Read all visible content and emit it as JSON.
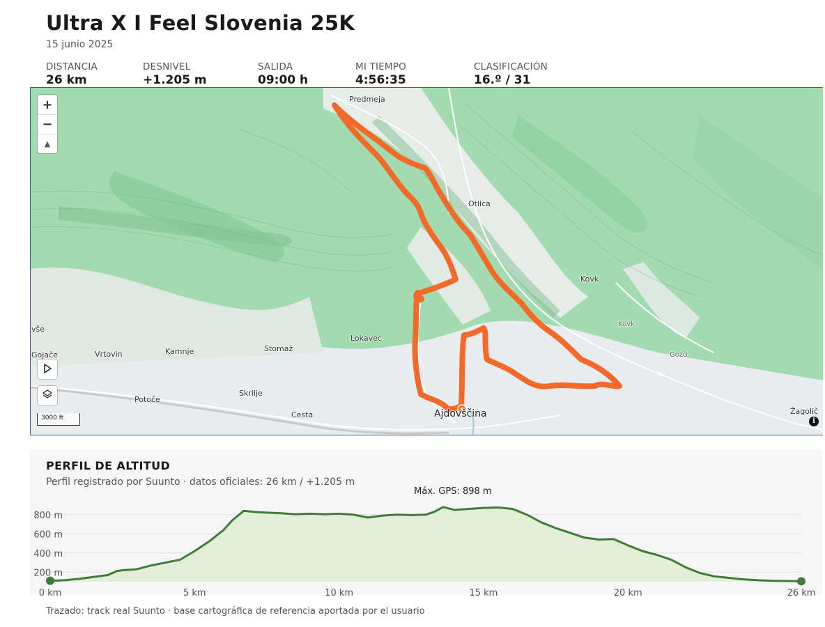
{
  "header": {
    "title": "Ultra X I Feel Slovenia 25K",
    "date": "15 junio 2025"
  },
  "stats": [
    {
      "label": "DISTANCIA",
      "value": "26 km"
    },
    {
      "label": "DESNIVEL",
      "value": "+1.205 m"
    },
    {
      "label": "SALIDA",
      "value": "09:00 h"
    },
    {
      "label": "MI TIEMPO",
      "value": "4:56:35"
    },
    {
      "label": "CLASIFICACIÓN",
      "value": "16.º / 31"
    }
  ],
  "map": {
    "zoom_in": "+",
    "zoom_out": "−",
    "compass": "▲",
    "play_icon": "play-icon",
    "layers_icon": "layers-icon",
    "scale": "3000 ft",
    "info": "i",
    "route_color": "#f26a2a",
    "places": {
      "predmeja": "Predmeja",
      "otlica": "Otlica",
      "kovk": "Kovk",
      "kovk2": "Kovk",
      "gozd": "Gozd",
      "zagolic": "Žagolič",
      "lokavec": "Lokavec",
      "stomaz": "Stomaž",
      "kamnje": "Kamnje",
      "vrtovin": "Vrtovin",
      "gojace": "Gojače",
      "vse": "vše",
      "potoce": "Potoče",
      "skrilje": "Skrilje",
      "cesta": "Cesta",
      "ajdovscina": "Ajdovščina"
    }
  },
  "profile": {
    "title": "PERFIL DE ALTITUD",
    "subtitle": "Perfil registrado por Suunto · datos oficiales: 26 km / +1.205 m",
    "max_label": "Máx. GPS: 898 m",
    "fill_color": "#e2efd6",
    "line_color": "#3e7c3a"
  },
  "footer": "Trazado: track real Suunto · base cartográfica de referencia aportada por el usuario",
  "chart_data": {
    "type": "area",
    "xlabel": "",
    "ylabel": "",
    "xlim": [
      0,
      26
    ],
    "ylim": [
      100,
      900
    ],
    "x_ticks": [
      "0 km",
      "5 km",
      "10 km",
      "15 km",
      "20 km",
      "26 km"
    ],
    "y_ticks": [
      "200 m",
      "400 m",
      "600 m",
      "800 m"
    ],
    "x": [
      0,
      0.5,
      1,
      1.5,
      2,
      2.3,
      2.5,
      3,
      3.5,
      4,
      4.5,
      5,
      5.5,
      6,
      6.3,
      6.7,
      7.2,
      8,
      8.5,
      9,
      9.5,
      10,
      10.5,
      11,
      11.5,
      12,
      12.5,
      13,
      13.3,
      13.6,
      14,
      14.5,
      15,
      15.5,
      16,
      16.5,
      17,
      17.5,
      18,
      18.5,
      19,
      19.5,
      20,
      20.5,
      21,
      21.5,
      22,
      22.5,
      23,
      23.5,
      24,
      24.5,
      25,
      26
    ],
    "y": [
      110,
      115,
      130,
      150,
      170,
      210,
      220,
      230,
      270,
      300,
      330,
      420,
      520,
      640,
      740,
      840,
      825,
      815,
      805,
      810,
      805,
      810,
      800,
      770,
      790,
      800,
      795,
      800,
      830,
      880,
      850,
      860,
      870,
      875,
      860,
      800,
      720,
      660,
      610,
      560,
      540,
      545,
      480,
      420,
      380,
      330,
      250,
      190,
      155,
      140,
      125,
      115,
      110,
      105
    ]
  }
}
